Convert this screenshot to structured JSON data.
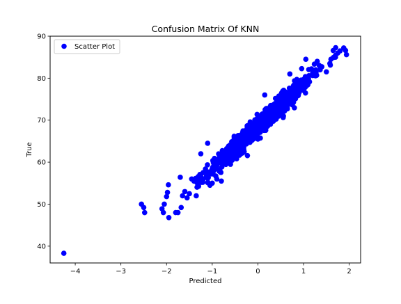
{
  "chart_data": {
    "type": "scatter",
    "title": "Confusion Matrix Of KNN",
    "xlabel": "Predicted",
    "ylabel": "True",
    "xlim": [
      -4.55,
      2.25
    ],
    "ylim": [
      36,
      90
    ],
    "xticks": [
      -4,
      -3,
      -2,
      -1,
      0,
      1,
      2
    ],
    "yticks": [
      40,
      50,
      60,
      70,
      80,
      90
    ],
    "grid": false,
    "legend": {
      "position": "top-left",
      "entries": [
        "Scatter Plot"
      ]
    },
    "series": [
      {
        "name": "Scatter Plot",
        "color": "#0000ff",
        "marker": "circle",
        "trend": {
          "slope": 10.07,
          "intercept": 68.5,
          "noise_sd": 1.2
        },
        "points": [
          [
            -4.25,
            38.3
          ],
          [
            -2.55,
            50.0
          ],
          [
            -2.5,
            49.2
          ],
          [
            -2.48,
            48.0
          ],
          [
            -2.1,
            48.9
          ],
          [
            -2.07,
            48.0
          ],
          [
            -2.05,
            50.0
          ],
          [
            -2.0,
            51.8
          ],
          [
            -1.98,
            52.8
          ],
          [
            -1.96,
            54.6
          ],
          [
            -1.95,
            46.8
          ],
          [
            -1.8,
            48.0
          ],
          [
            -1.75,
            48.0
          ],
          [
            -1.7,
            56.4
          ],
          [
            -1.68,
            49.2
          ],
          [
            -1.65,
            52.0
          ],
          [
            -1.6,
            53.0
          ],
          [
            -1.55,
            51.5
          ],
          [
            -1.5,
            52.5
          ],
          [
            -1.45,
            56.0
          ],
          [
            -1.4,
            55.5
          ],
          [
            -1.35,
            52.0
          ],
          [
            -1.3,
            56.0
          ],
          [
            -1.25,
            62.0
          ],
          [
            -1.2,
            57.5
          ],
          [
            -1.1,
            64.5
          ],
          [
            -1.05,
            54.5
          ],
          [
            -1.0,
            55.0
          ],
          [
            -0.9,
            56.0
          ],
          [
            -0.8,
            55.5
          ],
          [
            -0.6,
            59.5
          ],
          [
            -0.5,
            61.5
          ],
          [
            -0.3,
            62.5
          ],
          [
            -0.2,
            67.5
          ],
          [
            -0.1,
            68.0
          ],
          [
            0.0,
            65.5
          ],
          [
            0.15,
            76.0
          ],
          [
            0.3,
            73.5
          ],
          [
            0.7,
            81.0
          ],
          [
            0.9,
            76.5
          ],
          [
            1.05,
            84.5
          ],
          [
            1.3,
            84.0
          ],
          [
            1.5,
            81.5
          ],
          [
            1.6,
            84.5
          ],
          [
            1.65,
            86.6
          ],
          [
            1.7,
            85.0
          ],
          [
            1.75,
            86.0
          ],
          [
            1.8,
            86.5
          ],
          [
            1.88,
            87.2
          ],
          [
            1.92,
            86.6
          ],
          [
            1.94,
            85.6
          ]
        ]
      }
    ]
  }
}
